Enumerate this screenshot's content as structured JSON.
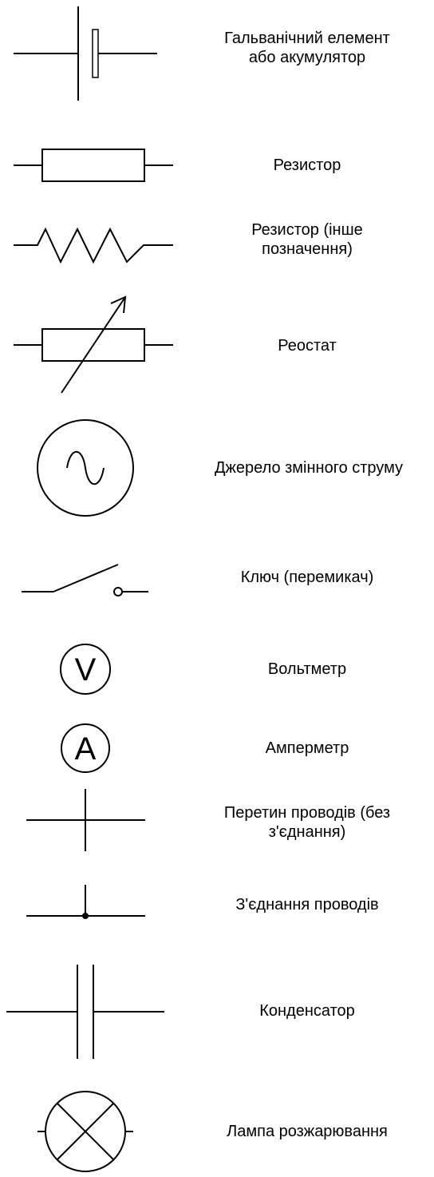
{
  "symbols": [
    {
      "id": "cell",
      "symbol_icon": "galvanic-cell-icon",
      "label_lines": [
        "Гальванічний елемент",
        "або акумулятор"
      ]
    },
    {
      "id": "resistor",
      "symbol_icon": "resistor-icon",
      "label_lines": [
        "Резистор"
      ]
    },
    {
      "id": "resistor-alt",
      "symbol_icon": "resistor-zigzag-icon",
      "label_lines": [
        "Резистор (інше",
        "позначення)"
      ]
    },
    {
      "id": "rheostat",
      "symbol_icon": "rheostat-icon",
      "label_lines": [
        "Реостат"
      ]
    },
    {
      "id": "ac-source",
      "symbol_icon": "ac-source-icon",
      "label_lines": [
        "Джерело змінного струму"
      ]
    },
    {
      "id": "switch",
      "symbol_icon": "switch-icon",
      "label_lines": [
        "Ключ (перемикач)"
      ]
    },
    {
      "id": "voltmeter",
      "symbol_icon": "voltmeter-icon",
      "symbol_letter": "V",
      "label_lines": [
        "Вольтметр"
      ]
    },
    {
      "id": "ammeter",
      "symbol_icon": "ammeter-icon",
      "symbol_letter": "A",
      "label_lines": [
        "Амперметр"
      ]
    },
    {
      "id": "wire-crossing",
      "symbol_icon": "wire-crossing-icon",
      "label_lines": [
        "Перетин проводів (без",
        "з'єднання)"
      ]
    },
    {
      "id": "wire-junction",
      "symbol_icon": "wire-junction-icon",
      "label_lines": [
        "З'єднання проводів"
      ]
    },
    {
      "id": "capacitor",
      "symbol_icon": "capacitor-icon",
      "label_lines": [
        "Конденсатор"
      ]
    },
    {
      "id": "lamp",
      "symbol_icon": "lamp-icon",
      "label_lines": [
        "Лампа розжарювання"
      ]
    }
  ],
  "colors": {
    "stroke": "#000000",
    "background": "#ffffff"
  }
}
